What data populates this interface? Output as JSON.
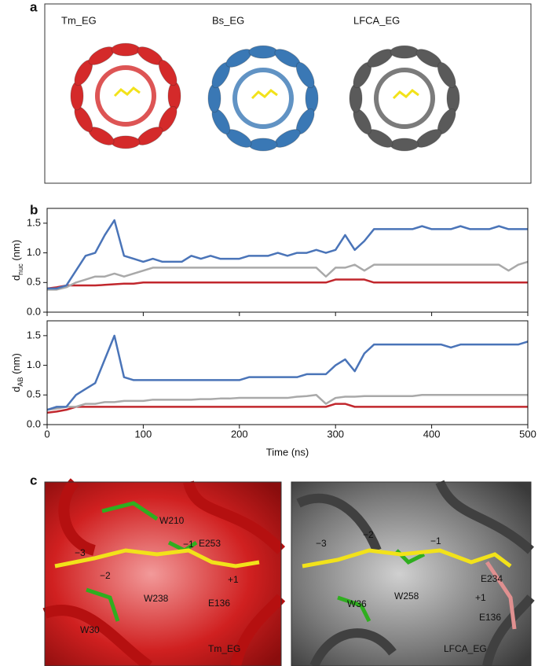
{
  "panels": {
    "a": {
      "label": "a",
      "names": [
        "Tm_EG",
        "Bs_EG",
        "LFCA_EG"
      ],
      "colors": [
        "#d42a2a",
        "#3a78b5",
        "#5a5a5a"
      ]
    },
    "b": {
      "label": "b"
    },
    "c": {
      "label": "c",
      "left": [
        {
          "text": "W210",
          "color": "#3ad12a"
        },
        {
          "text": "−1",
          "color": "#f0f0f0"
        },
        {
          "text": "E253",
          "color": "#f0f0f0"
        },
        {
          "text": "−3",
          "color": "#f0f0f0"
        },
        {
          "text": "−2",
          "color": "#f0f0f0"
        },
        {
          "text": "W238",
          "color": "#3ad12a"
        },
        {
          "text": "+1",
          "color": "#f0f0f0"
        },
        {
          "text": "E136",
          "color": "#f0f0f0"
        },
        {
          "text": "W30",
          "color": "#3ad12a"
        },
        {
          "text": "Tm_EG",
          "color": "#f0f0f0"
        }
      ],
      "right": [
        {
          "text": "−3",
          "color": "#f0f0f0"
        },
        {
          "text": "−2",
          "color": "#f0f0f0"
        },
        {
          "text": "−1",
          "color": "#f0f0f0"
        },
        {
          "text": "W36",
          "color": "#3ad12a"
        },
        {
          "text": "W258",
          "color": "#3ad12a"
        },
        {
          "text": "E234",
          "color": "#f2a8a8"
        },
        {
          "text": "+1",
          "color": "#f0f0f0"
        },
        {
          "text": "E136",
          "color": "#f2a8a8"
        },
        {
          "text": "LFCA_EG",
          "color": "#f0f0f0"
        }
      ]
    }
  },
  "chart_data": [
    {
      "type": "line",
      "ylabel_main": "d",
      "ylabel_sub": "nuc",
      "ylabel_unit": " (nm)",
      "x": [
        0,
        10,
        20,
        30,
        40,
        50,
        60,
        70,
        80,
        90,
        100,
        110,
        120,
        130,
        140,
        150,
        160,
        170,
        180,
        190,
        200,
        210,
        220,
        230,
        240,
        250,
        260,
        270,
        280,
        290,
        300,
        310,
        320,
        330,
        340,
        350,
        360,
        370,
        380,
        390,
        400,
        410,
        420,
        430,
        440,
        450,
        460,
        470,
        480,
        490,
        500
      ],
      "xlim": [
        0,
        500
      ],
      "xticks": [
        0,
        100,
        200,
        300,
        400,
        500
      ],
      "show_xtick_labels": false,
      "ylim": [
        0,
        1.75
      ],
      "yticks": [
        {
          "value": 0,
          "label": "0.0"
        },
        {
          "value": 0.5,
          "label": "0.5"
        },
        {
          "value": 1,
          "label": "1.0"
        },
        {
          "value": 1.5,
          "label": "1.5"
        }
      ],
      "series": [
        {
          "color": "#c1272d",
          "values": [
            0.4,
            0.42,
            0.45,
            0.45,
            0.45,
            0.45,
            0.46,
            0.47,
            0.48,
            0.48,
            0.5,
            0.5,
            0.5,
            0.5,
            0.5,
            0.5,
            0.5,
            0.5,
            0.5,
            0.5,
            0.5,
            0.5,
            0.5,
            0.5,
            0.5,
            0.5,
            0.5,
            0.5,
            0.5,
            0.5,
            0.55,
            0.55,
            0.55,
            0.55,
            0.5,
            0.5,
            0.5,
            0.5,
            0.5,
            0.5,
            0.5,
            0.5,
            0.5,
            0.5,
            0.5,
            0.5,
            0.5,
            0.5,
            0.5,
            0.5,
            0.5
          ]
        },
        {
          "color": "#a9a9a9",
          "values": [
            0.38,
            0.38,
            0.42,
            0.5,
            0.55,
            0.6,
            0.6,
            0.65,
            0.6,
            0.65,
            0.7,
            0.75,
            0.75,
            0.75,
            0.75,
            0.75,
            0.75,
            0.75,
            0.75,
            0.75,
            0.75,
            0.75,
            0.75,
            0.75,
            0.75,
            0.75,
            0.75,
            0.75,
            0.75,
            0.6,
            0.75,
            0.75,
            0.8,
            0.7,
            0.8,
            0.8,
            0.8,
            0.8,
            0.8,
            0.8,
            0.8,
            0.8,
            0.8,
            0.8,
            0.8,
            0.8,
            0.8,
            0.8,
            0.7,
            0.8,
            0.85
          ]
        },
        {
          "color": "#4a74b8",
          "values": [
            0.4,
            0.4,
            0.45,
            0.7,
            0.95,
            1,
            1.3,
            1.55,
            0.95,
            0.9,
            0.85,
            0.9,
            0.85,
            0.85,
            0.85,
            0.95,
            0.9,
            0.95,
            0.9,
            0.9,
            0.9,
            0.95,
            0.95,
            0.95,
            1,
            0.95,
            1,
            1,
            1.05,
            1,
            1.05,
            1.3,
            1.05,
            1.2,
            1.4,
            1.4,
            1.4,
            1.4,
            1.4,
            1.45,
            1.4,
            1.4,
            1.4,
            1.45,
            1.4,
            1.4,
            1.4,
            1.45,
            1.4,
            1.4,
            1.4
          ]
        }
      ]
    },
    {
      "type": "line",
      "ylabel_main": "d",
      "ylabel_sub": "AB",
      "ylabel_unit": " (nm)",
      "xlabel": "Time (ns)",
      "x": [
        0,
        10,
        20,
        30,
        40,
        50,
        60,
        70,
        80,
        90,
        100,
        110,
        120,
        130,
        140,
        150,
        160,
        170,
        180,
        190,
        200,
        210,
        220,
        230,
        240,
        250,
        260,
        270,
        280,
        290,
        300,
        310,
        320,
        330,
        340,
        350,
        360,
        370,
        380,
        390,
        400,
        410,
        420,
        430,
        440,
        450,
        460,
        470,
        480,
        490,
        500
      ],
      "xlim": [
        0,
        500
      ],
      "xticks": [
        0,
        100,
        200,
        300,
        400,
        500
      ],
      "show_xtick_labels": true,
      "ylim": [
        0,
        1.75
      ],
      "yticks": [
        {
          "value": 0,
          "label": "0.0"
        },
        {
          "value": 0.5,
          "label": "0.5"
        },
        {
          "value": 1,
          "label": "1.0"
        },
        {
          "value": 1.5,
          "label": "1.5"
        }
      ],
      "series": [
        {
          "color": "#c1272d",
          "values": [
            0.2,
            0.22,
            0.25,
            0.3,
            0.3,
            0.3,
            0.3,
            0.3,
            0.3,
            0.3,
            0.3,
            0.3,
            0.3,
            0.3,
            0.3,
            0.3,
            0.3,
            0.3,
            0.3,
            0.3,
            0.3,
            0.3,
            0.3,
            0.3,
            0.3,
            0.3,
            0.3,
            0.3,
            0.3,
            0.3,
            0.35,
            0.35,
            0.3,
            0.3,
            0.3,
            0.3,
            0.3,
            0.3,
            0.3,
            0.3,
            0.3,
            0.3,
            0.3,
            0.3,
            0.3,
            0.3,
            0.3,
            0.3,
            0.3,
            0.3,
            0.3
          ]
        },
        {
          "color": "#a9a9a9",
          "values": [
            0.25,
            0.27,
            0.3,
            0.3,
            0.35,
            0.35,
            0.38,
            0.38,
            0.4,
            0.4,
            0.4,
            0.42,
            0.42,
            0.42,
            0.42,
            0.42,
            0.43,
            0.43,
            0.44,
            0.44,
            0.45,
            0.45,
            0.45,
            0.45,
            0.45,
            0.45,
            0.47,
            0.48,
            0.5,
            0.35,
            0.45,
            0.47,
            0.47,
            0.48,
            0.48,
            0.48,
            0.48,
            0.48,
            0.48,
            0.5,
            0.5,
            0.5,
            0.5,
            0.5,
            0.5,
            0.5,
            0.5,
            0.5,
            0.5,
            0.5,
            0.5
          ]
        },
        {
          "color": "#4a74b8",
          "values": [
            0.25,
            0.3,
            0.3,
            0.5,
            0.6,
            0.7,
            1.1,
            1.5,
            0.8,
            0.75,
            0.75,
            0.75,
            0.75,
            0.75,
            0.75,
            0.75,
            0.75,
            0.75,
            0.75,
            0.75,
            0.75,
            0.8,
            0.8,
            0.8,
            0.8,
            0.8,
            0.8,
            0.85,
            0.85,
            0.85,
            1,
            1.1,
            0.9,
            1.2,
            1.35,
            1.35,
            1.35,
            1.35,
            1.35,
            1.35,
            1.35,
            1.35,
            1.3,
            1.35,
            1.35,
            1.35,
            1.35,
            1.35,
            1.35,
            1.35,
            1.4
          ]
        }
      ]
    }
  ]
}
